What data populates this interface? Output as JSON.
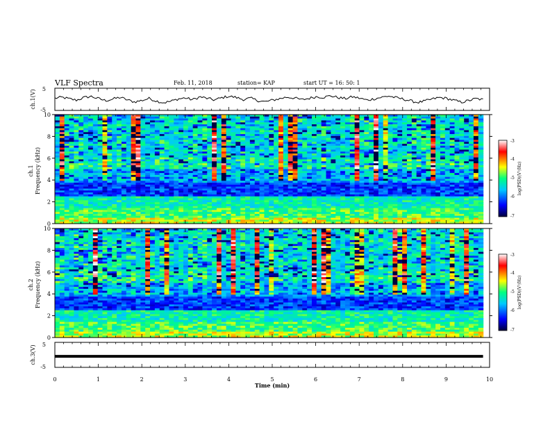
{
  "header": {
    "title": "VLF Spectra",
    "date": "Feb. 11, 2018",
    "station": "station= KAP",
    "start": "start  UT =   16: 50: 1"
  },
  "colors": {
    "colormap": [
      "#00003c",
      "#0000ff",
      "#00c8ff",
      "#00ff80",
      "#ffff00",
      "#ff0000",
      "#ffffff"
    ],
    "trace": "#000000"
  },
  "chart_data": [
    {
      "type": "line",
      "id": "ch1-waveform",
      "ylabel": "ch.1(V)",
      "ylim": [
        -5,
        5
      ],
      "yticks": [
        "5",
        "-5"
      ],
      "xlim": [
        0,
        10
      ],
      "description_series": "noisy waveform fluctuating roughly between -2 and +2 V",
      "series": [
        {
          "values": [
            0.5,
            0.9,
            0.2,
            -0.4,
            0.8,
            1.3,
            0.3,
            -0.6,
            0.1,
            0.9,
            -0.3,
            -1.2,
            -0.5,
            0.4,
            -0.8,
            -1.5,
            -0.9,
            0.2,
            0.6,
            -0.2,
            1.1,
            0.4,
            -0.3,
            0.7,
            1.4,
            0.8,
            -0.1,
            0.5,
            -0.6,
            -1.1,
            -0.4,
            0.3,
            1.0,
            0.6,
            -0.2,
            0.4,
            1.2,
            0.9,
            1.6,
            0.8,
            0.3,
            1.1,
            0.5,
            -0.4,
            0.2,
            0.9,
            1.5,
            0.7,
            0.1,
            -0.7,
            -1.4,
            -0.8,
            0.1,
            0.8,
            0.4,
            -0.5,
            -1.3,
            -0.6,
            0.3,
            -0.2
          ]
        }
      ]
    },
    {
      "type": "heatmap",
      "id": "ch1-spectrogram",
      "ylabel": "ch.1\nFrequency (kHz)",
      "xlim": [
        0,
        10
      ],
      "ylim": [
        0,
        10
      ],
      "yticks": [
        "0",
        "2",
        "4",
        "6",
        "8",
        "10"
      ],
      "colorbar": {
        "label": "log(PSD)(V²/Hz)",
        "range": [
          -7,
          -3
        ],
        "ticks": [
          "-3",
          "-4",
          "-5",
          "-6",
          "-7"
        ]
      }
    },
    {
      "type": "heatmap",
      "id": "ch2-spectrogram",
      "ylabel": "ch.2\nFrequency (kHz)",
      "xlim": [
        0,
        10
      ],
      "ylim": [
        0,
        10
      ],
      "yticks": [
        "0",
        "2",
        "4",
        "6",
        "8",
        "10"
      ],
      "colorbar": {
        "label": "log(PSD)(V²/Hz)",
        "range": [
          -7,
          -3
        ],
        "ticks": [
          "-3",
          "-4",
          "-5",
          "-6",
          "-7"
        ]
      }
    },
    {
      "type": "line",
      "id": "ch3-waveform",
      "ylabel": "ch.3(V)",
      "ylim": [
        -5,
        5
      ],
      "yticks": [
        "5",
        "-5"
      ],
      "xlim": [
        0,
        10
      ],
      "series": [
        {
          "values": [
            -0.6,
            -0.6
          ]
        }
      ]
    }
  ],
  "xaxis": {
    "label": "Time (min)",
    "ticks": [
      "0",
      "1",
      "2",
      "3",
      "4",
      "5",
      "6",
      "7",
      "8",
      "9",
      "10"
    ]
  }
}
